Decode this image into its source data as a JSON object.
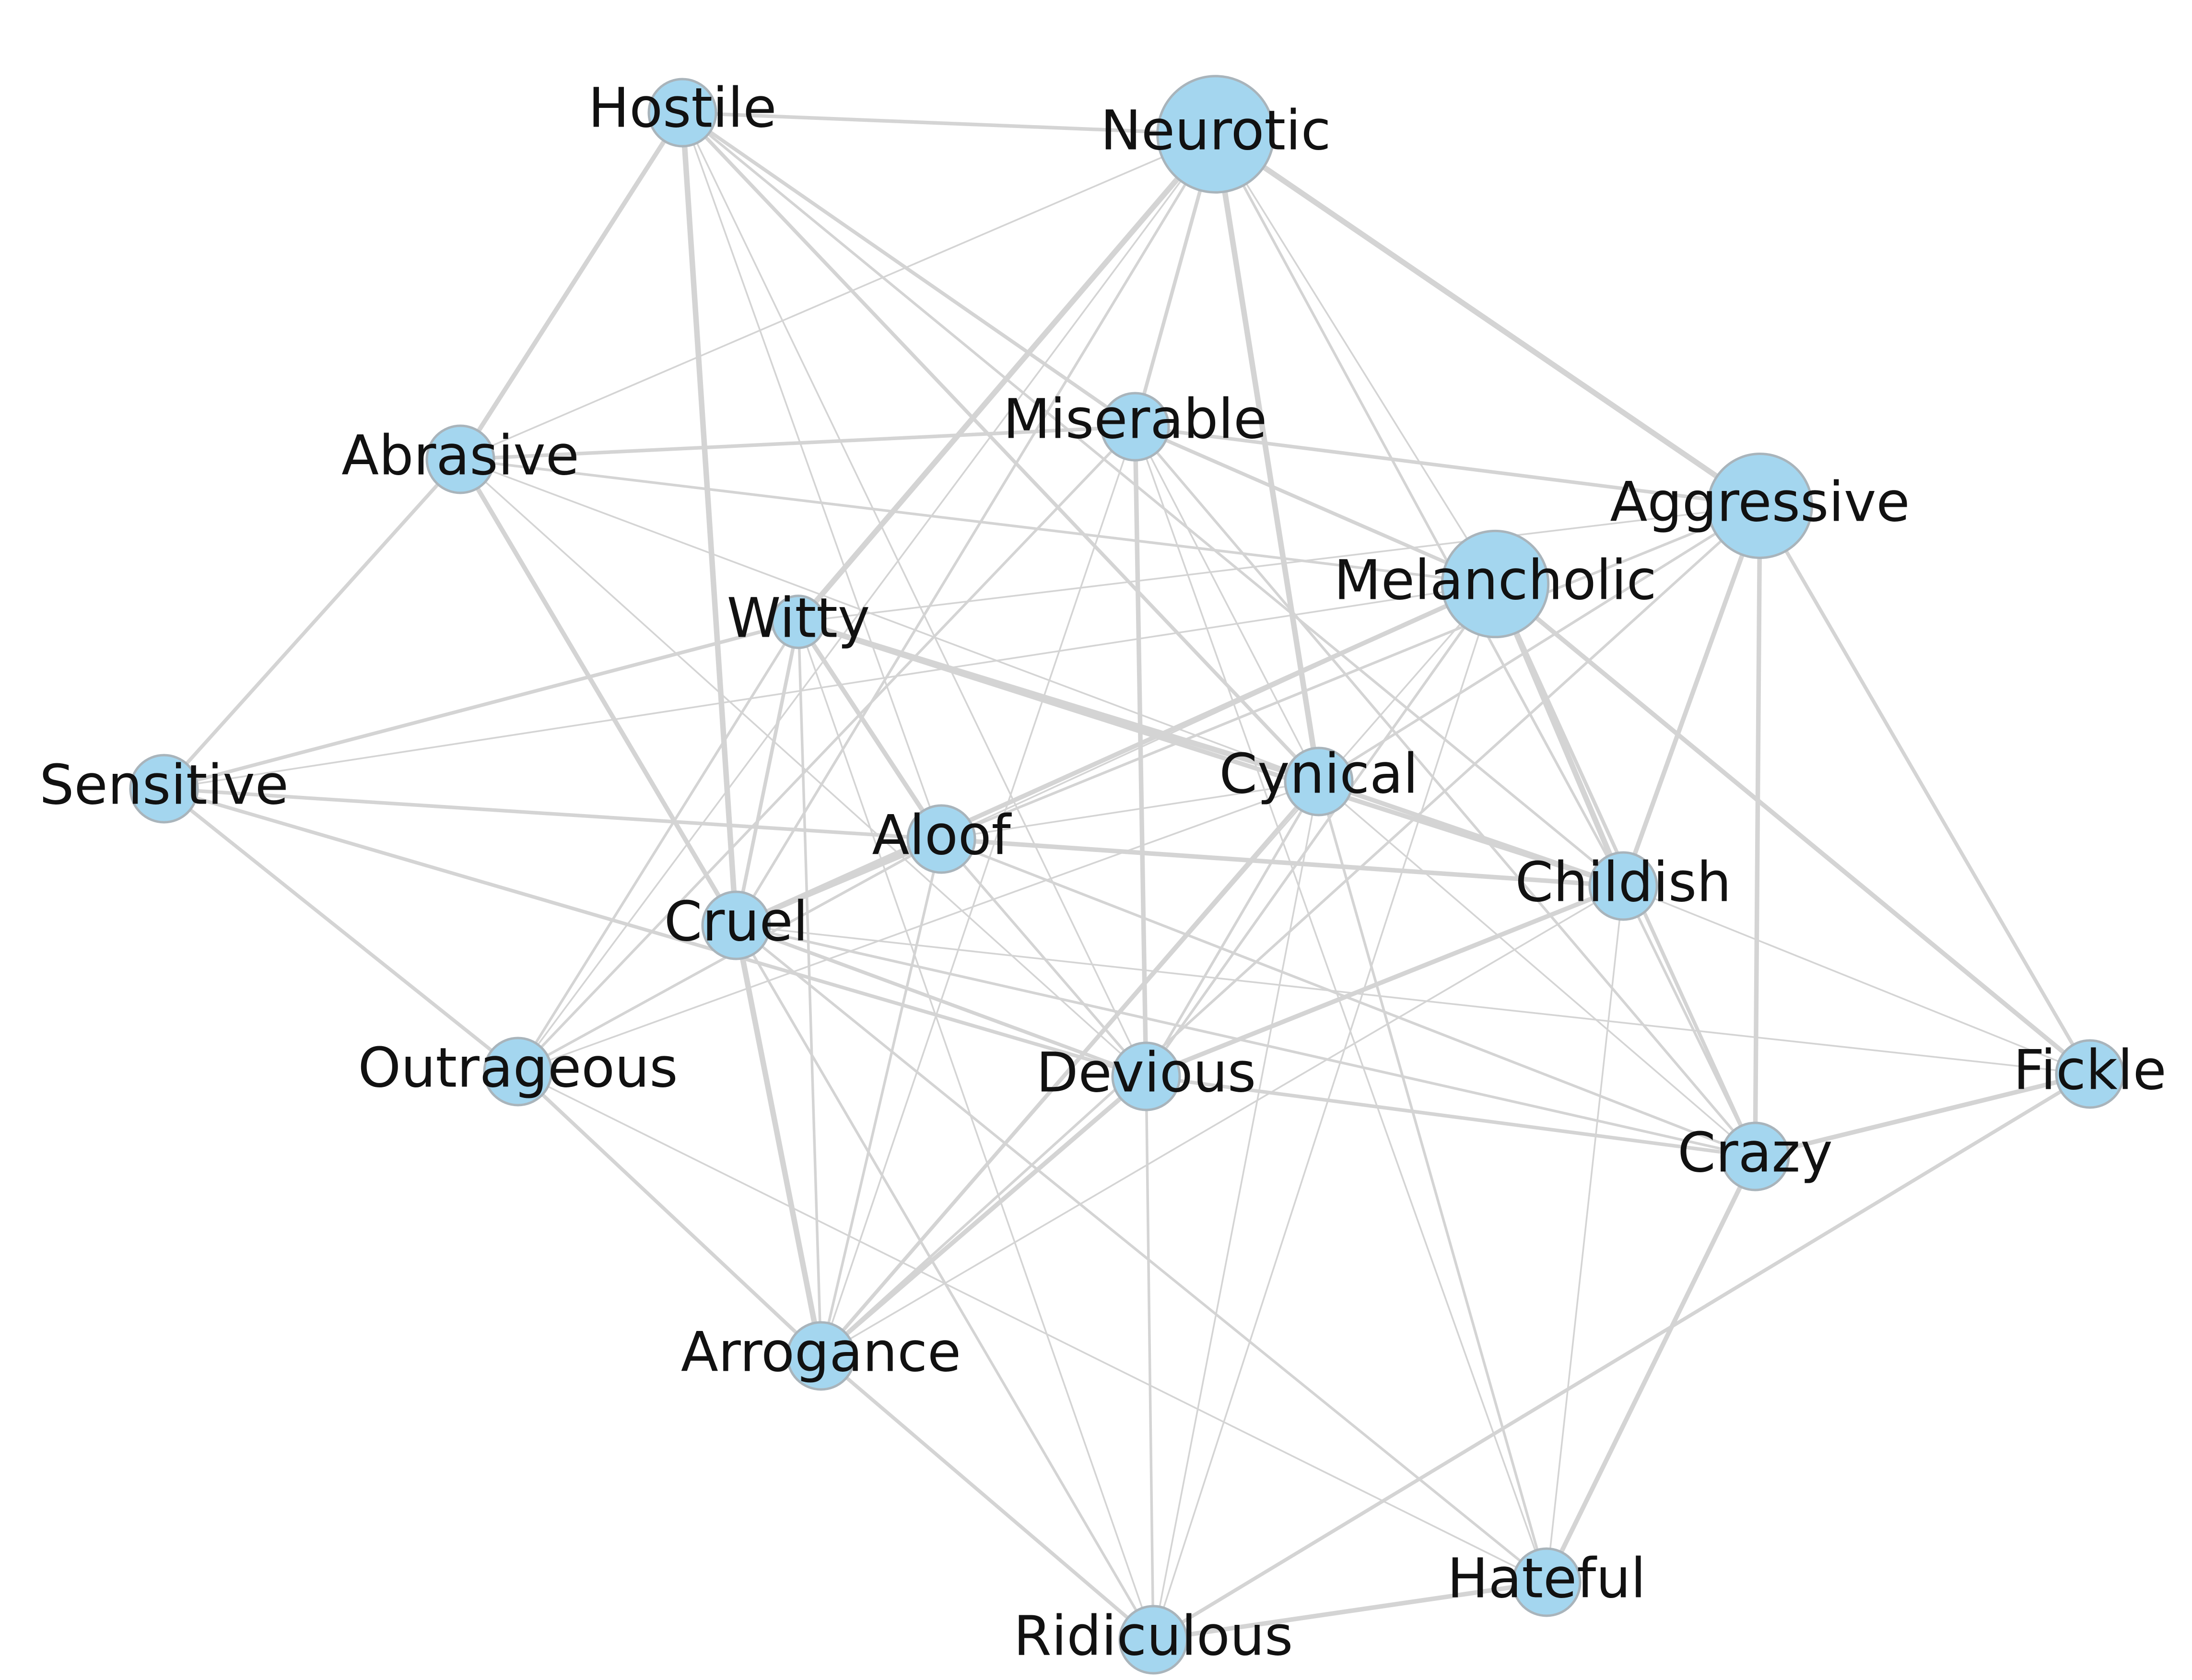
{
  "nodes": [
    {
      "id": "hostile",
      "label": "Hostile",
      "weight": 1
    },
    {
      "id": "neurotic",
      "label": "Neurotic",
      "weight": 3
    },
    {
      "id": "miserable",
      "label": "Miserable",
      "weight": 1
    },
    {
      "id": "abrasive",
      "label": "Abrasive",
      "weight": 1
    },
    {
      "id": "aggressive",
      "label": "Aggressive",
      "weight": 2.4
    },
    {
      "id": "melancholic",
      "label": "Melancholic",
      "weight": 2.5
    },
    {
      "id": "witty",
      "label": "Witty",
      "weight": 0.6
    },
    {
      "id": "sensitive",
      "label": "Sensitive",
      "weight": 1
    },
    {
      "id": "cynical",
      "label": "Cynical",
      "weight": 1
    },
    {
      "id": "aloof",
      "label": "Aloof",
      "weight": 1
    },
    {
      "id": "childish",
      "label": "Childish",
      "weight": 1
    },
    {
      "id": "cruel",
      "label": "Cruel",
      "weight": 1
    },
    {
      "id": "outrageous",
      "label": "Outrageous",
      "weight": 1
    },
    {
      "id": "devious",
      "label": "Devious",
      "weight": 1
    },
    {
      "id": "fickle",
      "label": "Fickle",
      "weight": 1
    },
    {
      "id": "crazy",
      "label": "Crazy",
      "weight": 1
    },
    {
      "id": "arrogance",
      "label": "Arrogance",
      "weight": 1
    },
    {
      "id": "hateful",
      "label": "Hateful",
      "weight": 1
    },
    {
      "id": "ridiculous",
      "label": "Ridiculous",
      "weight": 1
    }
  ],
  "edges": [
    [
      "hostile",
      "neurotic",
      3
    ],
    [
      "hostile",
      "abrasive",
      4
    ],
    [
      "hostile",
      "cruel",
      5
    ],
    [
      "hostile",
      "miserable",
      3
    ],
    [
      "hostile",
      "cynical",
      3
    ],
    [
      "hostile",
      "aloof",
      1
    ],
    [
      "hostile",
      "devious",
      1
    ],
    [
      "hostile",
      "childish",
      2
    ],
    [
      "neurotic",
      "miserable",
      3
    ],
    [
      "neurotic",
      "aggressive",
      5
    ],
    [
      "neurotic",
      "cynical",
      5
    ],
    [
      "neurotic",
      "witty",
      5
    ],
    [
      "neurotic",
      "childish",
      2
    ],
    [
      "neurotic",
      "abrasive",
      1
    ],
    [
      "neurotic",
      "cruel",
      2
    ],
    [
      "neurotic",
      "melancholic",
      1
    ],
    [
      "neurotic",
      "outrageous",
      1
    ],
    [
      "miserable",
      "abrasive",
      3
    ],
    [
      "miserable",
      "aggressive",
      3
    ],
    [
      "miserable",
      "melancholic",
      3
    ],
    [
      "miserable",
      "devious",
      4
    ],
    [
      "miserable",
      "crazy",
      2
    ],
    [
      "miserable",
      "outrageous",
      2
    ],
    [
      "miserable",
      "cynical",
      1
    ],
    [
      "miserable",
      "arrogance",
      1
    ],
    [
      "miserable",
      "hateful",
      1
    ],
    [
      "abrasive",
      "sensitive",
      3
    ],
    [
      "abrasive",
      "cruel",
      4
    ],
    [
      "abrasive",
      "melancholic",
      2
    ],
    [
      "abrasive",
      "devious",
      1
    ],
    [
      "abrasive",
      "cynical",
      1
    ],
    [
      "aggressive",
      "childish",
      4
    ],
    [
      "aggressive",
      "crazy",
      4
    ],
    [
      "aggressive",
      "fickle",
      3
    ],
    [
      "aggressive",
      "cynical",
      2
    ],
    [
      "aggressive",
      "witty",
      1
    ],
    [
      "aggressive",
      "aloof",
      2
    ],
    [
      "aggressive",
      "arrogance",
      2
    ],
    [
      "melancholic",
      "childish",
      5
    ],
    [
      "melancholic",
      "cruel",
      4
    ],
    [
      "melancholic",
      "crazy",
      3
    ],
    [
      "melancholic",
      "devious",
      2
    ],
    [
      "melancholic",
      "fickle",
      4
    ],
    [
      "melancholic",
      "aloof",
      1
    ],
    [
      "melancholic",
      "sensitive",
      1
    ],
    [
      "melancholic",
      "arrogance",
      1
    ],
    [
      "melancholic",
      "ridiculous",
      1
    ],
    [
      "witty",
      "sensitive",
      3
    ],
    [
      "witty",
      "aloof",
      4
    ],
    [
      "witty",
      "cynical",
      5
    ],
    [
      "witty",
      "childish",
      4
    ],
    [
      "witty",
      "cruel",
      3
    ],
    [
      "witty",
      "arrogance",
      2
    ],
    [
      "witty",
      "outrageous",
      2
    ],
    [
      "witty",
      "ridiculous",
      1
    ],
    [
      "sensitive",
      "aloof",
      3
    ],
    [
      "sensitive",
      "devious",
      3
    ],
    [
      "sensitive",
      "outrageous",
      3
    ],
    [
      "cynical",
      "childish",
      4
    ],
    [
      "cynical",
      "devious",
      2
    ],
    [
      "cynical",
      "arrogance",
      3
    ],
    [
      "cynical",
      "hateful",
      2
    ],
    [
      "cynical",
      "crazy",
      1
    ],
    [
      "cynical",
      "outrageous",
      1
    ],
    [
      "cynical",
      "aloof",
      1
    ],
    [
      "cynical",
      "ridiculous",
      1
    ],
    [
      "aloof",
      "childish",
      4
    ],
    [
      "aloof",
      "cruel",
      4
    ],
    [
      "aloof",
      "outrageous",
      2
    ],
    [
      "aloof",
      "crazy",
      2
    ],
    [
      "aloof",
      "devious",
      2
    ],
    [
      "aloof",
      "arrogance",
      2
    ],
    [
      "childish",
      "devious",
      4
    ],
    [
      "childish",
      "crazy",
      2
    ],
    [
      "childish",
      "fickle",
      1
    ],
    [
      "childish",
      "hateful",
      1
    ],
    [
      "childish",
      "arrogance",
      1
    ],
    [
      "cruel",
      "devious",
      3
    ],
    [
      "cruel",
      "arrogance",
      5
    ],
    [
      "cruel",
      "crazy",
      2
    ],
    [
      "cruel",
      "ridiculous",
      2
    ],
    [
      "cruel",
      "hateful",
      2
    ],
    [
      "cruel",
      "fickle",
      1
    ],
    [
      "outrageous",
      "arrogance",
      3
    ],
    [
      "outrageous",
      "hateful",
      1
    ],
    [
      "devious",
      "crazy",
      3
    ],
    [
      "devious",
      "ridiculous",
      2
    ],
    [
      "devious",
      "arrogance",
      4
    ],
    [
      "crazy",
      "fickle",
      4
    ],
    [
      "crazy",
      "hateful",
      4
    ],
    [
      "fickle",
      "ridiculous",
      3
    ],
    [
      "hateful",
      "ridiculous",
      4
    ],
    [
      "arrogance",
      "ridiculous",
      3
    ]
  ]
}
